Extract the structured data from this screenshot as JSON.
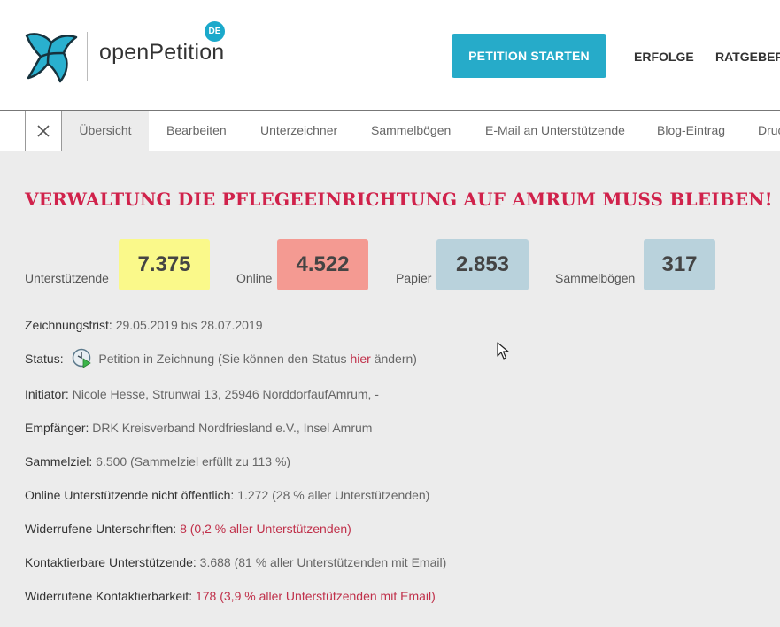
{
  "brand": {
    "name": "openPetition",
    "badge": "DE",
    "color": "#1ba9cb"
  },
  "header": {
    "start_button": "PETITION STARTEN",
    "nav": [
      "ERFOLGE",
      "RATGEBER"
    ]
  },
  "tabs": [
    {
      "label": "Übersicht",
      "active": true
    },
    {
      "label": "Bearbeiten"
    },
    {
      "label": "Unterzeichner"
    },
    {
      "label": "Sammelbögen"
    },
    {
      "label": "E-Mail an Unterstützende"
    },
    {
      "label": "Blog-Eintrag"
    },
    {
      "label": "Druc"
    }
  ],
  "petition": {
    "title": "VERWALTUNG DIE PFLEGEEINRICHTUNG AUF AMRUM MUSS BLEIBEN!",
    "stats": [
      {
        "label": "Unterstützende",
        "value": "7.375",
        "color": "#faf98a"
      },
      {
        "label": "Online",
        "value": "4.522",
        "color": "#f49a92"
      },
      {
        "label": "Papier",
        "value": "2.853",
        "color": "#b9d2dc"
      },
      {
        "label": "Sammelbögen",
        "value": "317",
        "color": "#b9d2dc"
      }
    ],
    "info": {
      "deadline": {
        "label": "Zeichnungsfrist:",
        "value": "29.05.2019 bis 28.07.2019"
      },
      "status": {
        "label": "Status:",
        "text_before": "Petition in Zeichnung (Sie können den Status ",
        "link": "hier",
        "text_after": " ändern)"
      },
      "initiator": {
        "label": "Initiator:",
        "value": "Nicole Hesse, Strunwai 13, 25946 NorddorfaufAmrum, -"
      },
      "recipient": {
        "label": "Empfänger:",
        "value": "DRK Kreisverband Nordfriesland e.V., Insel Amrum"
      },
      "goal": {
        "label": "Sammelziel:",
        "value": "6.500 (Sammelziel erfüllt zu 113 %)"
      },
      "online_private": {
        "label": "Online Unterstützende nicht öffentlich:",
        "value": "1.272 (28 % aller Unterstützenden)"
      },
      "revoked_signatures": {
        "label": "Widerrufene Unterschriften:",
        "value": "8 (0,2 % aller Unterstützenden)"
      },
      "contactable": {
        "label": "Kontaktierbare Unterstützende:",
        "value": "3.688 (81 % aller Unterstützenden mit Email)"
      },
      "revoked_contact": {
        "label": "Widerrufene Kontaktierbarkeit:",
        "value": "178 (3,9 % aller Unterstützenden mit Email)"
      }
    }
  },
  "icons": [
    "bird-logo-icon",
    "close-icon",
    "clock-status-icon",
    "mouse-cursor-icon"
  ]
}
